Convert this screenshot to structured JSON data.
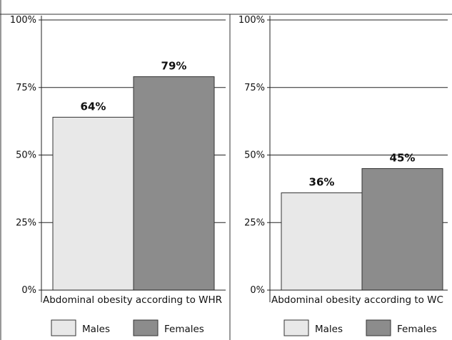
{
  "chart_data": [
    {
      "type": "bar",
      "categories": [
        "Abdominal obesity according to WHR"
      ],
      "series": [
        {
          "name": "Males",
          "values": [
            64
          ],
          "color": "#e8e8e8"
        },
        {
          "name": "Females",
          "values": [
            79
          ],
          "color": "#8c8c8c"
        }
      ],
      "data_labels": [
        "64%",
        "79%"
      ],
      "ylim": [
        0,
        100
      ],
      "y_ticks": [
        "0%",
        "25%",
        "50%",
        "75%",
        "100%"
      ],
      "grid": true,
      "legend": "bottom"
    },
    {
      "type": "bar",
      "categories": [
        "Abdominal obesity according to WC"
      ],
      "series": [
        {
          "name": "Males",
          "values": [
            36
          ],
          "color": "#e8e8e8"
        },
        {
          "name": "Females",
          "values": [
            45
          ],
          "color": "#8c8c8c"
        }
      ],
      "data_labels": [
        "36%",
        "45%"
      ],
      "ylim": [
        0,
        100
      ],
      "y_ticks": [
        "0%",
        "25%",
        "50%",
        "75%",
        "100%"
      ],
      "grid": true,
      "legend": "bottom"
    }
  ]
}
